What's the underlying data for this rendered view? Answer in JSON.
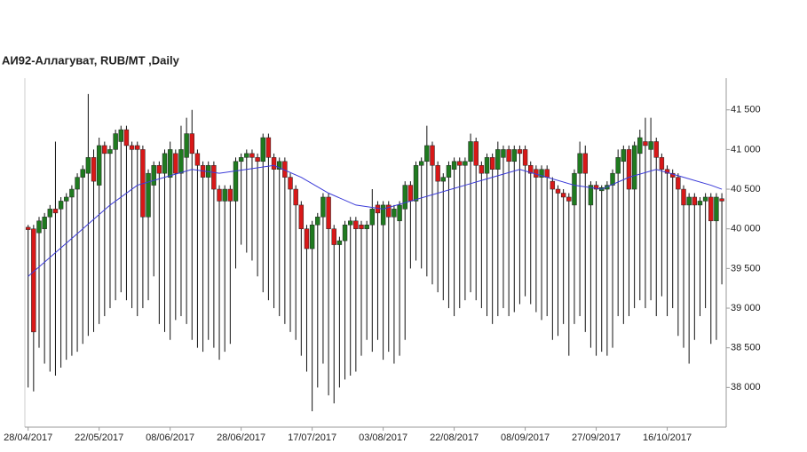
{
  "chart_data": {
    "type": "candlestick",
    "title": "АИ92-Аллагуват,  RUB/MT ,Daily",
    "xlim": [
      -0.6,
      127.8
    ],
    "ylim": [
      37500,
      41900
    ],
    "xticks": [
      {
        "value": 0,
        "label": "28/04/2017"
      },
      {
        "value": 13,
        "label": "22/05/2017"
      },
      {
        "value": 26,
        "label": "08/06/2017"
      },
      {
        "value": 39,
        "label": "28/06/2017"
      },
      {
        "value": 52,
        "label": "17/07/2017"
      },
      {
        "value": 65,
        "label": "03/08/2017"
      },
      {
        "value": 78,
        "label": "22/08/2017"
      },
      {
        "value": 91,
        "label": "08/09/2017"
      },
      {
        "value": 104,
        "label": "27/09/2017"
      },
      {
        "value": 117,
        "label": "16/10/2017"
      }
    ],
    "yticks": [
      {
        "value": 38000,
        "label": "38 000"
      },
      {
        "value": 38500,
        "label": "38 500"
      },
      {
        "value": 39000,
        "label": "39 000"
      },
      {
        "value": 39500,
        "label": "39 500"
      },
      {
        "value": 40000,
        "label": "40 000"
      },
      {
        "value": 40500,
        "label": "40 500"
      },
      {
        "value": 41000,
        "label": "41 000"
      },
      {
        "value": 41500,
        "label": "41 500"
      }
    ],
    "up_color": "#1f7a1f",
    "down_color": "#d81818",
    "wick_color": "#111111",
    "open": [
      40020,
      40000,
      39950,
      40000,
      40150,
      40250,
      40250,
      40350,
      40400,
      40500,
      40650,
      40700,
      40900,
      40550,
      41050,
      40950,
      41000,
      41100,
      41250,
      41050,
      41050,
      41000,
      40150,
      40550,
      40800,
      40700,
      40650,
      40950,
      40700,
      40900,
      41200,
      40950,
      40800,
      40650,
      40800,
      40500,
      40350,
      40500,
      40350,
      40850,
      40900,
      40950,
      40900,
      40850,
      41150,
      40900,
      40750,
      40850,
      40650,
      40500,
      40300,
      40000,
      39750,
      40050,
      40150,
      40400,
      40000,
      39800,
      39850,
      40050,
      40100,
      40050,
      40000,
      40050,
      40300,
      40050,
      40300,
      40150,
      40100,
      40250,
      40550,
      40350,
      40800,
      40850,
      41050,
      40800,
      40600,
      40650,
      40750,
      40850,
      40800,
      40850,
      41100,
      40800,
      40700,
      40900,
      40750,
      40900,
      41000,
      40850,
      41000,
      41000,
      40800,
      40750,
      40650,
      40750,
      40600,
      40500,
      40450,
      40400,
      40300,
      40700,
      40950,
      40300,
      40550,
      40480,
      40500,
      40550,
      40700,
      40850,
      41000,
      40500,
      40950,
      41100,
      41000,
      41100,
      40900,
      40750,
      40700,
      40650,
      40500,
      40300,
      40400,
      40300,
      40350,
      40400,
      40100,
      40380
    ],
    "high": [
      40050,
      40050,
      40150,
      40200,
      40300,
      41100,
      40400,
      40450,
      40550,
      40700,
      40800,
      41700,
      41000,
      41150,
      41100,
      41050,
      41250,
      41300,
      41300,
      41100,
      41100,
      41050,
      40750,
      40850,
      40850,
      41000,
      41100,
      41000,
      41300,
      41400,
      41500,
      41000,
      40850,
      40850,
      40850,
      40550,
      40550,
      40550,
      40900,
      40950,
      41000,
      41000,
      40950,
      41200,
      41200,
      40950,
      40900,
      40900,
      40700,
      40550,
      40350,
      40050,
      40100,
      40200,
      40450,
      40450,
      40050,
      39900,
      40100,
      40150,
      40150,
      40100,
      40100,
      40500,
      40350,
      40350,
      40350,
      40300,
      40350,
      40600,
      40600,
      40850,
      40900,
      41300,
      41100,
      40850,
      40700,
      40850,
      40900,
      40900,
      40900,
      41200,
      41150,
      40850,
      40950,
      40950,
      41100,
      41050,
      41050,
      41050,
      41050,
      41050,
      40850,
      40800,
      40800,
      40800,
      40650,
      40550,
      40500,
      40450,
      40750,
      41100,
      41050,
      40600,
      40600,
      40550,
      40600,
      40750,
      41000,
      41050,
      41050,
      41100,
      41250,
      41400,
      41400,
      41150,
      40950,
      40800,
      40750,
      40700,
      40550,
      40450,
      40450,
      40400,
      40450,
      40450,
      40450,
      40450
    ],
    "low": [
      38000,
      37950,
      38500,
      38300,
      38200,
      38150,
      38250,
      38350,
      38400,
      38450,
      38550,
      38650,
      38700,
      38800,
      38900,
      39000,
      39100,
      39200,
      39100,
      39000,
      38900,
      39000,
      39100,
      39400,
      38800,
      38700,
      38600,
      38850,
      38900,
      38800,
      38600,
      38500,
      38450,
      38600,
      38500,
      38350,
      38450,
      38550,
      39500,
      39800,
      39700,
      39600,
      39400,
      39200,
      39100,
      39000,
      38900,
      38800,
      38700,
      38600,
      38400,
      38200,
      37700,
      38000,
      38300,
      37900,
      37800,
      38000,
      38100,
      38150,
      38200,
      38400,
      38600,
      38450,
      38600,
      38350,
      38450,
      38300,
      38400,
      38600,
      39500,
      39600,
      39500,
      39400,
      39300,
      39200,
      39100,
      39000,
      38900,
      39000,
      39100,
      39200,
      39100,
      39000,
      38900,
      38800,
      38900,
      39000,
      38900,
      38950,
      39050,
      39150,
      39050,
      38950,
      38850,
      38900,
      38600,
      38650,
      38800,
      38400,
      38800,
      38900,
      38700,
      38500,
      38400,
      38450,
      38400,
      38500,
      38900,
      38800,
      38900,
      39000,
      39100,
      39000,
      39100,
      38900,
      39150,
      38900,
      39000,
      38650,
      38500,
      38300,
      38600,
      38900,
      39000,
      38550,
      38600,
      39300
    ],
    "close": [
      39990,
      38700,
      40100,
      40150,
      40250,
      40200,
      40350,
      40400,
      40500,
      40650,
      40750,
      40900,
      40600,
      41050,
      40950,
      41000,
      41200,
      41250,
      41050,
      41000,
      41000,
      40150,
      40700,
      40800,
      40700,
      40950,
      41000,
      40700,
      41000,
      41200,
      40950,
      40800,
      40650,
      40800,
      40500,
      40350,
      40500,
      40350,
      40850,
      40900,
      40950,
      40900,
      40850,
      41150,
      40900,
      40750,
      40850,
      40650,
      40500,
      40300,
      40000,
      39750,
      40050,
      40150,
      40400,
      40000,
      39800,
      39850,
      40050,
      40100,
      40000,
      40000,
      40050,
      40250,
      40200,
      40300,
      40150,
      40250,
      40300,
      40550,
      40350,
      40800,
      40850,
      41050,
      40800,
      40600,
      40650,
      40800,
      40850,
      40800,
      40850,
      41100,
      40800,
      40700,
      40900,
      40750,
      41000,
      41000,
      40850,
      41000,
      40950,
      40800,
      40700,
      40650,
      40750,
      40650,
      40500,
      40450,
      40400,
      40350,
      40700,
      40950,
      40700,
      40550,
      40500,
      40520,
      40550,
      40700,
      40900,
      41000,
      40500,
      41050,
      41150,
      41050,
      41100,
      40900,
      40750,
      40700,
      40650,
      40500,
      40300,
      40400,
      40300,
      40350,
      40400,
      40100,
      40400,
      40350
    ],
    "series": [
      {
        "color": "#3a3ad8",
        "x": [
          0,
          5,
          10,
          15,
          20,
          25,
          30,
          35,
          40,
          45,
          50,
          55,
          60,
          65,
          70,
          75,
          80,
          85,
          90,
          95,
          100,
          105,
          110,
          115,
          120,
          125,
          127
        ],
        "values": [
          39400,
          39700,
          40000,
          40300,
          40550,
          40650,
          40750,
          40700,
          40750,
          40800,
          40650,
          40450,
          40300,
          40250,
          40350,
          40450,
          40550,
          40650,
          40750,
          40650,
          40550,
          40500,
          40650,
          40750,
          40650,
          40550,
          40500
        ]
      }
    ]
  }
}
